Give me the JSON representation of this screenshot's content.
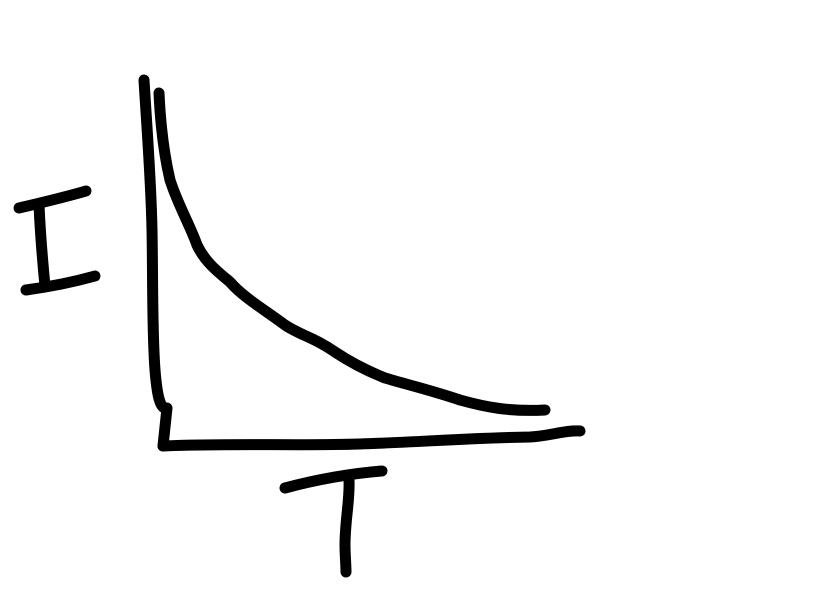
{
  "diagram": {
    "y_axis_label": "I",
    "x_axis_label": "T",
    "ink_color": "#000000",
    "background_color": "#ffffff"
  }
}
